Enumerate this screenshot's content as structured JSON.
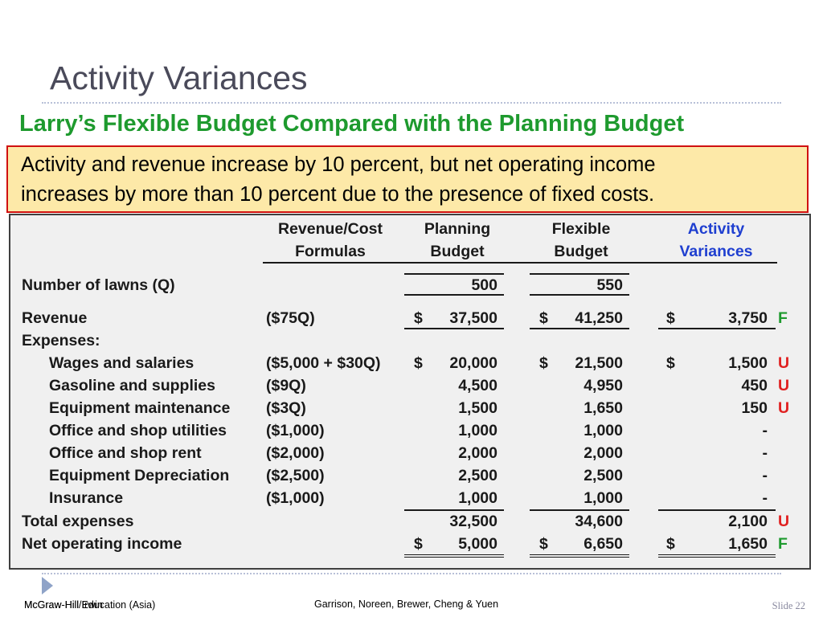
{
  "slide": {
    "title": "Activity Variances",
    "subtitle": "Larry’s Flexible Budget Compared with the Planning Budget",
    "callout_line1": "Activity and revenue increase by 10 percent, but net operating income",
    "callout_line2": "increases by more than 10 percent due to the presence of fixed costs."
  },
  "table": {
    "headers": {
      "formulas": [
        "Revenue/Cost",
        "Formulas"
      ],
      "planning": [
        "Planning",
        "Budget"
      ],
      "flexible": [
        "Flexible",
        "Budget"
      ],
      "activity": [
        "Activity",
        "Variances"
      ]
    },
    "rows": [
      {
        "label": "Number of lawns (Q)",
        "indent": false,
        "formula": "",
        "planning_sym": "",
        "planning": "500",
        "flexible_sym": "",
        "flexible": "550",
        "variance_sym": "",
        "variance": "",
        "flag": ""
      },
      {
        "label": "Revenue",
        "indent": false,
        "formula": "($75Q)",
        "planning_sym": "$",
        "planning": "37,500",
        "flexible_sym": "$",
        "flexible": "41,250",
        "variance_sym": "$",
        "variance": "3,750",
        "flag": "F"
      },
      {
        "label": "Expenses:",
        "indent": false,
        "formula": "",
        "planning_sym": "",
        "planning": "",
        "flexible_sym": "",
        "flexible": "",
        "variance_sym": "",
        "variance": "",
        "flag": ""
      },
      {
        "label": "Wages and salaries",
        "indent": true,
        "formula": "($5,000 + $30Q)",
        "planning_sym": "$",
        "planning": "20,000",
        "flexible_sym": "$",
        "flexible": "21,500",
        "variance_sym": "$",
        "variance": "1,500",
        "flag": "U"
      },
      {
        "label": "Gasoline and supplies",
        "indent": true,
        "formula": "($9Q)",
        "planning_sym": "",
        "planning": "4,500",
        "flexible_sym": "",
        "flexible": "4,950",
        "variance_sym": "",
        "variance": "450",
        "flag": "U"
      },
      {
        "label": "Equipment maintenance",
        "indent": true,
        "formula": "($3Q)",
        "planning_sym": "",
        "planning": "1,500",
        "flexible_sym": "",
        "flexible": "1,650",
        "variance_sym": "",
        "variance": "150",
        "flag": "U"
      },
      {
        "label": "Office and shop utilities",
        "indent": true,
        "formula": "($1,000)",
        "planning_sym": "",
        "planning": "1,000",
        "flexible_sym": "",
        "flexible": "1,000",
        "variance_sym": "",
        "variance": "-",
        "flag": ""
      },
      {
        "label": "Office and shop rent",
        "indent": true,
        "formula": "($2,000)",
        "planning_sym": "",
        "planning": "2,000",
        "flexible_sym": "",
        "flexible": "2,000",
        "variance_sym": "",
        "variance": "-",
        "flag": ""
      },
      {
        "label": "Equipment Depreciation",
        "indent": true,
        "formula": "($2,500)",
        "planning_sym": "",
        "planning": "2,500",
        "flexible_sym": "",
        "flexible": "2,500",
        "variance_sym": "",
        "variance": "-",
        "flag": ""
      },
      {
        "label": "Insurance",
        "indent": true,
        "formula": "($1,000)",
        "planning_sym": "",
        "planning": "1,000",
        "flexible_sym": "",
        "flexible": "1,000",
        "variance_sym": "",
        "variance": "-",
        "flag": ""
      },
      {
        "label": "Total expenses",
        "indent": false,
        "formula": "",
        "planning_sym": "",
        "planning": "32,500",
        "flexible_sym": "",
        "flexible": "34,600",
        "variance_sym": "",
        "variance": "2,100",
        "flag": "U"
      },
      {
        "label": "Net operating income",
        "indent": false,
        "formula": "",
        "planning_sym": "$",
        "planning": "5,000",
        "flexible_sym": "$",
        "flexible": "6,650",
        "variance_sym": "$",
        "variance": "1,650",
        "flag": "F"
      }
    ]
  },
  "footer": {
    "left_text": "McGraw-Hill/Irwin",
    "left_overlay": "McGraw-Hill Education (Asia)",
    "center": "Garrison, Noreen, Brewer, Cheng & Yuen",
    "slide_label": "Slide",
    "slide_number": "22"
  },
  "colors": {
    "title": "#4a4a5a",
    "subtitle_green": "#1e9a2e",
    "callout_bg": "#fde9a8",
    "callout_border": "#d01010",
    "activity_header_blue": "#1f3fd0",
    "favorable": "#1e9a2e",
    "unfavorable": "#e02020"
  }
}
